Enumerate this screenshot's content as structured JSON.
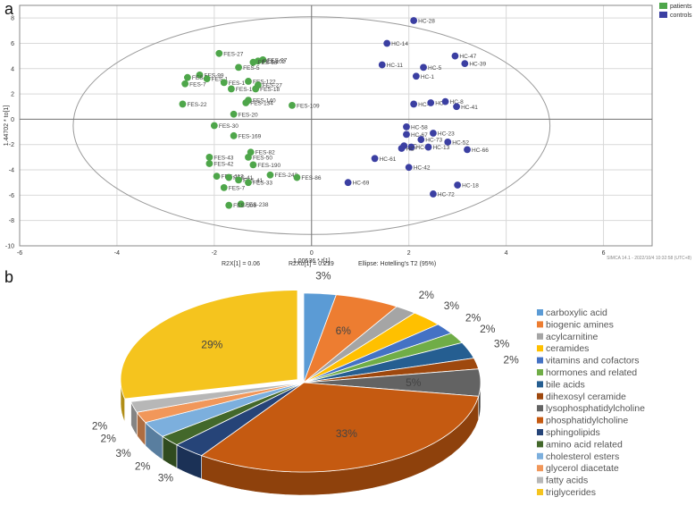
{
  "panel_a_label": "a",
  "panel_b_label": "b",
  "colors": {
    "patients": "#4ea64a",
    "controls": "#3b3fa2",
    "grid": "#d9d9d9",
    "ellipse": "#9a9a9a"
  },
  "chart_data": [
    {
      "type": "scatter",
      "title": "",
      "xlabel": "1.00536 * t[1]",
      "ylabel": "1.44702 * to[1]",
      "xlim": [
        -6,
        7
      ],
      "ylim": [
        -10,
        9
      ],
      "xticks": [
        -6,
        -4,
        -2,
        0,
        2,
        4,
        6
      ],
      "yticks": [
        -10,
        -8,
        -6,
        -4,
        -2,
        0,
        2,
        4,
        6,
        8
      ],
      "grid": true,
      "legend": [
        "patients",
        "controls"
      ],
      "legend_position": "top-right",
      "footer_texts": [
        "R2X[1] = 0.06",
        "R2Xo[1] = 0.219",
        "Ellipse: Hotelling's T2 (95%)"
      ],
      "footer_credit": "SIMCA 14.1 - 2022/10/4 10:32:58 (UTC+8)",
      "series": [
        {
          "name": "patients",
          "points": [
            {
              "x": -1.9,
              "y": 5.2,
              "label": "FES-27"
            },
            {
              "x": -1.0,
              "y": 4.7,
              "label": "FES-97"
            },
            {
              "x": -1.1,
              "y": 4.6,
              "label": "FES-102"
            },
            {
              "x": -1.2,
              "y": 4.5,
              "label": "FES-68"
            },
            {
              "x": -1.5,
              "y": 4.1,
              "label": "FES-5"
            },
            {
              "x": -2.3,
              "y": 3.5,
              "label": "FES-99"
            },
            {
              "x": -2.55,
              "y": 3.3,
              "label": "FES-4"
            },
            {
              "x": -2.15,
              "y": 3.2,
              "label": "FES-1"
            },
            {
              "x": -2.6,
              "y": 2.8,
              "label": "FES-7"
            },
            {
              "x": -1.8,
              "y": 2.9,
              "label": "FES-1"
            },
            {
              "x": -1.3,
              "y": 3.0,
              "label": "FES-122"
            },
            {
              "x": -1.1,
              "y": 2.7,
              "label": "FES-27"
            },
            {
              "x": -1.15,
              "y": 2.4,
              "label": "FES-18"
            },
            {
              "x": -1.65,
              "y": 2.4,
              "label": "FES-1"
            },
            {
              "x": -1.3,
              "y": 1.5,
              "label": "FES-140"
            },
            {
              "x": -1.35,
              "y": 1.3,
              "label": "FES-134"
            },
            {
              "x": -2.65,
              "y": 1.2,
              "label": "FES-22"
            },
            {
              "x": -0.4,
              "y": 1.1,
              "label": "FES-109"
            },
            {
              "x": -1.6,
              "y": 0.4,
              "label": "FES-20"
            },
            {
              "x": -2.0,
              "y": -0.5,
              "label": "FES-30"
            },
            {
              "x": -1.6,
              "y": -1.3,
              "label": "FES-169"
            },
            {
              "x": -1.25,
              "y": -2.6,
              "label": "FES-82"
            },
            {
              "x": -1.3,
              "y": -3.0,
              "label": "FES-50"
            },
            {
              "x": -2.1,
              "y": -3.0,
              "label": "FES-43"
            },
            {
              "x": -2.1,
              "y": -3.5,
              "label": "FES-42"
            },
            {
              "x": -1.2,
              "y": -3.6,
              "label": "FES-190"
            },
            {
              "x": -0.85,
              "y": -4.4,
              "label": "FES-242"
            },
            {
              "x": -0.3,
              "y": -4.6,
              "label": "FES-86"
            },
            {
              "x": -1.95,
              "y": -4.5,
              "label": "FES-112"
            },
            {
              "x": -1.7,
              "y": -4.6,
              "label": "FES-41"
            },
            {
              "x": -1.5,
              "y": -4.8,
              "label": "FES-41"
            },
            {
              "x": -1.3,
              "y": -5.0,
              "label": "FES-33"
            },
            {
              "x": -1.8,
              "y": -5.4,
              "label": "FES-7"
            },
            {
              "x": -1.45,
              "y": -6.7,
              "label": "FES-238"
            },
            {
              "x": -1.7,
              "y": -6.8,
              "label": "FES-106"
            }
          ]
        },
        {
          "name": "controls",
          "points": [
            {
              "x": 2.1,
              "y": 7.8,
              "label": "HC-28"
            },
            {
              "x": 1.55,
              "y": 6.0,
              "label": "HC-14"
            },
            {
              "x": 2.95,
              "y": 5.0,
              "label": "HC-47"
            },
            {
              "x": 1.45,
              "y": 4.3,
              "label": "HC-11"
            },
            {
              "x": 2.3,
              "y": 4.1,
              "label": "HC-5"
            },
            {
              "x": 3.15,
              "y": 4.4,
              "label": "HC-39"
            },
            {
              "x": 2.15,
              "y": 3.4,
              "label": "HC-1"
            },
            {
              "x": 2.1,
              "y": 1.2,
              "label": "HC-"
            },
            {
              "x": 2.45,
              "y": 1.3,
              "label": "HC-"
            },
            {
              "x": 2.75,
              "y": 1.4,
              "label": "HC-8"
            },
            {
              "x": 2.98,
              "y": 1.0,
              "label": "HC-41"
            },
            {
              "x": 1.95,
              "y": -0.6,
              "label": "HC-58"
            },
            {
              "x": 1.95,
              "y": -1.2,
              "label": "HC-67"
            },
            {
              "x": 2.5,
              "y": -1.1,
              "label": "HC-23"
            },
            {
              "x": 2.25,
              "y": -1.6,
              "label": "HC-73"
            },
            {
              "x": 2.8,
              "y": -1.8,
              "label": "HC-52"
            },
            {
              "x": 1.9,
              "y": -2.1,
              "label": "HC-"
            },
            {
              "x": 2.05,
              "y": -2.2,
              "label": "HC-"
            },
            {
              "x": 2.4,
              "y": -2.2,
              "label": "HC-13"
            },
            {
              "x": 1.85,
              "y": -2.3,
              "label": "HC-"
            },
            {
              "x": 3.2,
              "y": -2.4,
              "label": "HC-66"
            },
            {
              "x": 1.3,
              "y": -3.1,
              "label": "HC-61"
            },
            {
              "x": 2.0,
              "y": -3.8,
              "label": "HC-42"
            },
            {
              "x": 0.75,
              "y": -5.0,
              "label": "HC-69"
            },
            {
              "x": 3.0,
              "y": -5.2,
              "label": "HC-18"
            },
            {
              "x": 2.5,
              "y": -5.9,
              "label": "HC-72"
            }
          ]
        }
      ]
    },
    {
      "type": "pie",
      "title": "",
      "categories": [
        "carboxylic acid",
        "biogenic amines",
        "acylcarnitine",
        "ceramides",
        "vitamins and cofactors",
        "hormones and related",
        "bile acids",
        "dihexosyl ceramide",
        "lysophosphatidylcholine",
        "phosphatidylcholine",
        "sphingolipids",
        "amino acid related",
        "cholesterol esters",
        "glycerol diacetate",
        "fatty acids",
        "triglycerides"
      ],
      "values": [
        3,
        6,
        2,
        3,
        2,
        2,
        3,
        2,
        5,
        33,
        3,
        2,
        3,
        2,
        2,
        29
      ],
      "data_labels": [
        "3%",
        "6%",
        "2%",
        "3%",
        "2%",
        "2%",
        "3%",
        "2%",
        "5%",
        "33%",
        "3%",
        "2%",
        "3%",
        "2%",
        "2%",
        "29%"
      ],
      "colors": [
        "#5b9bd5",
        "#ed7d31",
        "#a5a5a5",
        "#ffc000",
        "#4472c4",
        "#70ad47",
        "#255e91",
        "#9e480e",
        "#636363",
        "#c55a11",
        "#264478",
        "#43682b",
        "#7cafdd",
        "#f1975a",
        "#b7b7b7",
        "#f5c41e"
      ],
      "legend_position": "right"
    }
  ]
}
